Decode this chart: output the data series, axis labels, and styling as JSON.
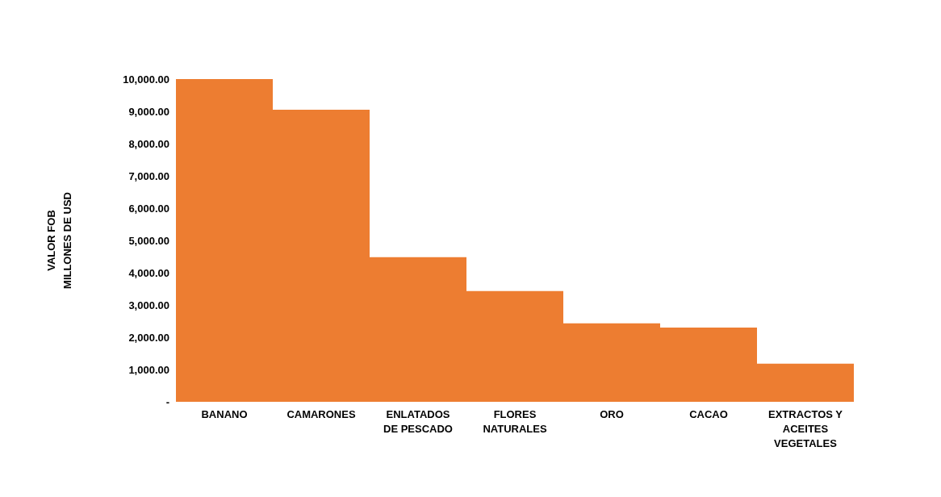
{
  "chart_data": {
    "type": "bar",
    "ylabel": "VALOR  FOB\nMILLONES  DE USD",
    "categories": [
      "BANANO",
      "CAMARONES",
      "ENLATADOS DE PESCADO",
      "FLORES NATURALES",
      "ORO",
      "CACAO",
      "EXTRACTOS Y ACEITES VEGETALES"
    ],
    "values": [
      10000,
      9050,
      4480,
      3430,
      2430,
      2300,
      1180
    ],
    "color": "#ed7d31",
    "ylim": [
      0,
      10000
    ],
    "yticks": [
      {
        "value": 0,
        "label": "-"
      },
      {
        "value": 1000,
        "label": "1,000.00"
      },
      {
        "value": 2000,
        "label": "2,000.00"
      },
      {
        "value": 3000,
        "label": "3,000.00"
      },
      {
        "value": 4000,
        "label": "4,000.00"
      },
      {
        "value": 5000,
        "label": "5,000.00"
      },
      {
        "value": 6000,
        "label": "6,000.00"
      },
      {
        "value": 7000,
        "label": "7,000.00"
      },
      {
        "value": 8000,
        "label": "8,000.00"
      },
      {
        "value": 9000,
        "label": "9,000.00"
      },
      {
        "value": 10000,
        "label": "10,000.00"
      }
    ],
    "grid": false
  }
}
